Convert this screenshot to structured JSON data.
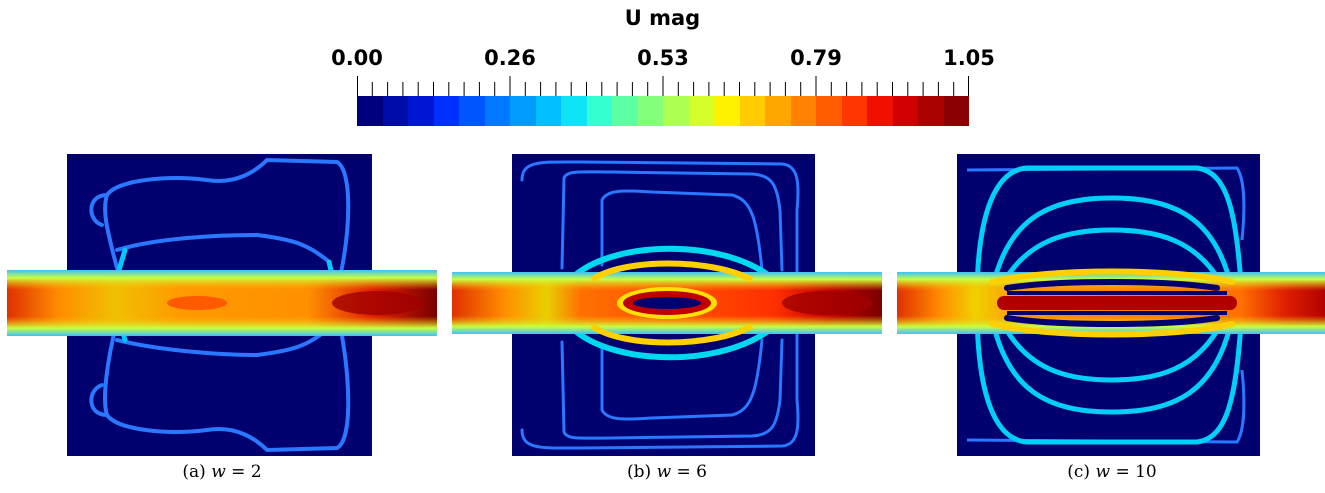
{
  "colorbar": {
    "title": "U mag",
    "tick_labels": [
      "0.00",
      "0.26",
      "0.53",
      "0.79",
      "1.05"
    ],
    "range": [
      0.0,
      1.05
    ],
    "colors": [
      "#00007f",
      "#000caa",
      "#0016d5",
      "#0030ff",
      "#0055ff",
      "#0078ff",
      "#009dff",
      "#00c0ff",
      "#0de3f6",
      "#34ffd0",
      "#5cffa4",
      "#84ff7c",
      "#adff52",
      "#d5ff29",
      "#fff200",
      "#ffcc00",
      "#ffa700",
      "#ff8200",
      "#ff5c00",
      "#ff3600",
      "#f10f00",
      "#d10000",
      "#ad0000",
      "#8b0000"
    ]
  },
  "panels": [
    {
      "caption_prefix": "(a)",
      "variable": "w",
      "value": "= 2"
    },
    {
      "caption_prefix": "(b)",
      "variable": "w",
      "value": "= 6"
    },
    {
      "caption_prefix": "(c)",
      "variable": "w",
      "value": "= 10"
    }
  ]
}
